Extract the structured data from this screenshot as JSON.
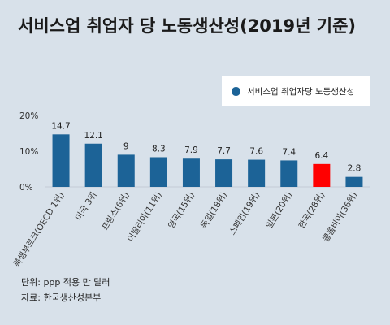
{
  "title": "서비스업 취업자 당 노동생산성(2019년 기준)",
  "legend": {
    "label": "서비스업 취업자당 노동생산성"
  },
  "footer": {
    "unit": "단위: ppp 적용 만 달러",
    "source": "자료: 한국생산성본부"
  },
  "colors": {
    "bar": "#1c6397",
    "highlight": "#ff0000",
    "background": "#d8e1ea"
  },
  "chart_data": {
    "type": "bar",
    "categories": [
      "룩셈부르크(OECD 1위)",
      "미국 3위",
      "프랑스(6위)",
      "이탈리아(11위)",
      "영국(15위)",
      "독일(18위)",
      "스페인(19위)",
      "일본(20위)",
      "한국(28위)",
      "콜롬비아(36위)"
    ],
    "series": [
      {
        "name": "서비스업 취업자당 노동생산성",
        "values": [
          14.7,
          12.1,
          9,
          8.3,
          7.9,
          7.7,
          7.6,
          7.4,
          6.4,
          2.8
        ]
      }
    ],
    "value_labels": [
      "14.7",
      "12.1",
      "9",
      "8.3",
      "7.9",
      "7.7",
      "7.6",
      "7.4",
      "6.4",
      "2.8"
    ],
    "highlight_index": 8,
    "yticks": [
      "0%",
      "10%",
      "20%"
    ],
    "ylim": [
      0,
      20
    ],
    "grid": false,
    "legend_position": "top-right"
  }
}
